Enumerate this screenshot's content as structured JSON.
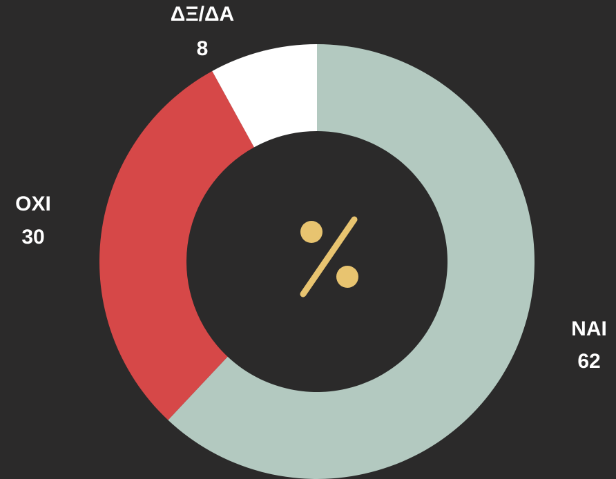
{
  "chart_data": {
    "type": "donut",
    "categories": [
      "NAI",
      "OXI",
      "ΔΞ/ΔΑ"
    ],
    "values": [
      62,
      30,
      8
    ],
    "colors": [
      "#b3c9c0",
      "#d64848",
      "#ffffff"
    ]
  }
}
